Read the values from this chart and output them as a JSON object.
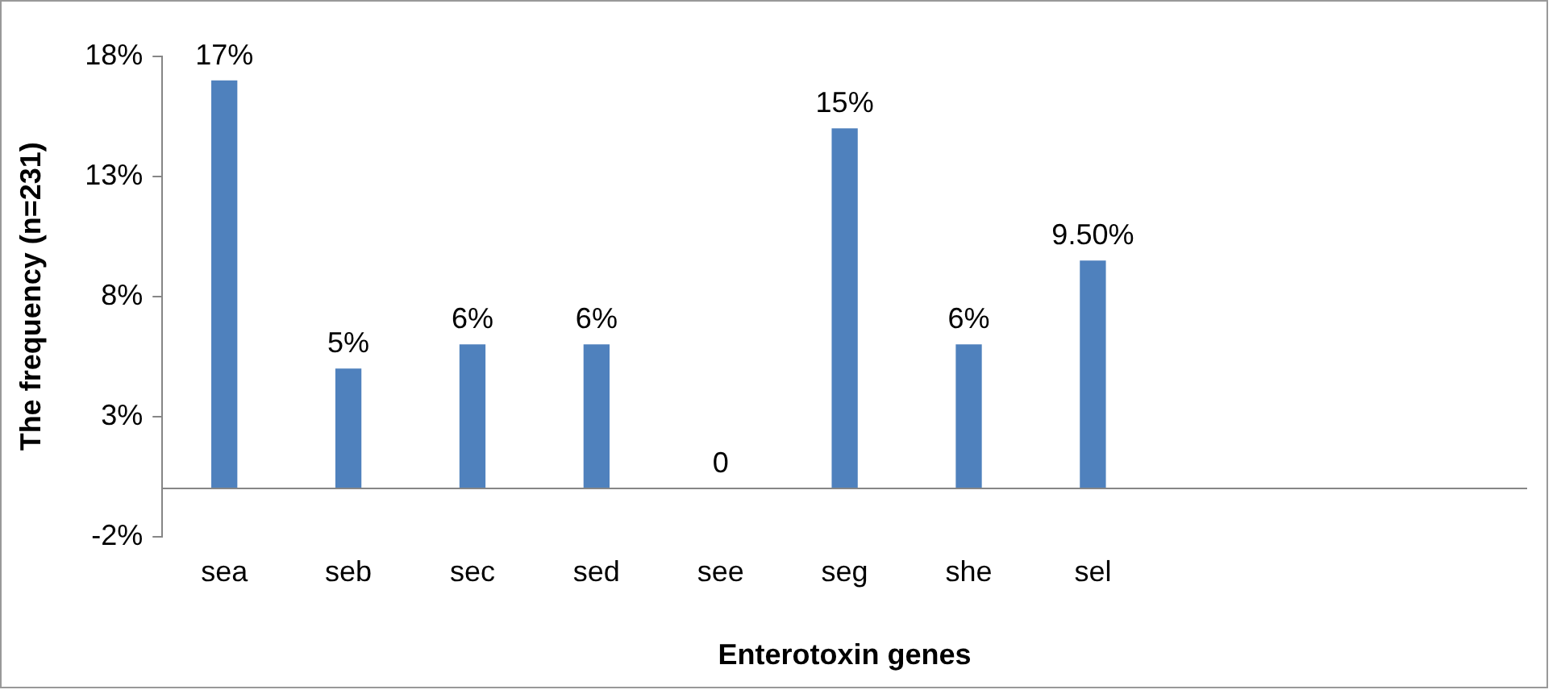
{
  "chart_data": {
    "type": "bar",
    "xlabel": "Enterotoxin genes",
    "ylabel": "The frequency (n=231)",
    "categories": [
      "sea",
      "seb",
      "sec",
      "sed",
      "see",
      "seg",
      "she",
      "sel",
      null,
      null,
      null
    ],
    "values": [
      17,
      5,
      6,
      6,
      0,
      15,
      6,
      9.5,
      null,
      null,
      null
    ],
    "value_labels": [
      "17%",
      "5%",
      "6%",
      "6%",
      "0",
      "15%",
      "6%",
      "9.50%",
      null,
      null,
      null
    ],
    "color": "#4f81bd",
    "ylim": [
      -2,
      18
    ],
    "yticks": [
      {
        "value": -2,
        "label": "-2%"
      },
      {
        "value": 3,
        "label": "3%"
      },
      {
        "value": 8,
        "label": "8%"
      },
      {
        "value": 13,
        "label": "13%"
      },
      {
        "value": 18,
        "label": "18%"
      }
    ]
  }
}
